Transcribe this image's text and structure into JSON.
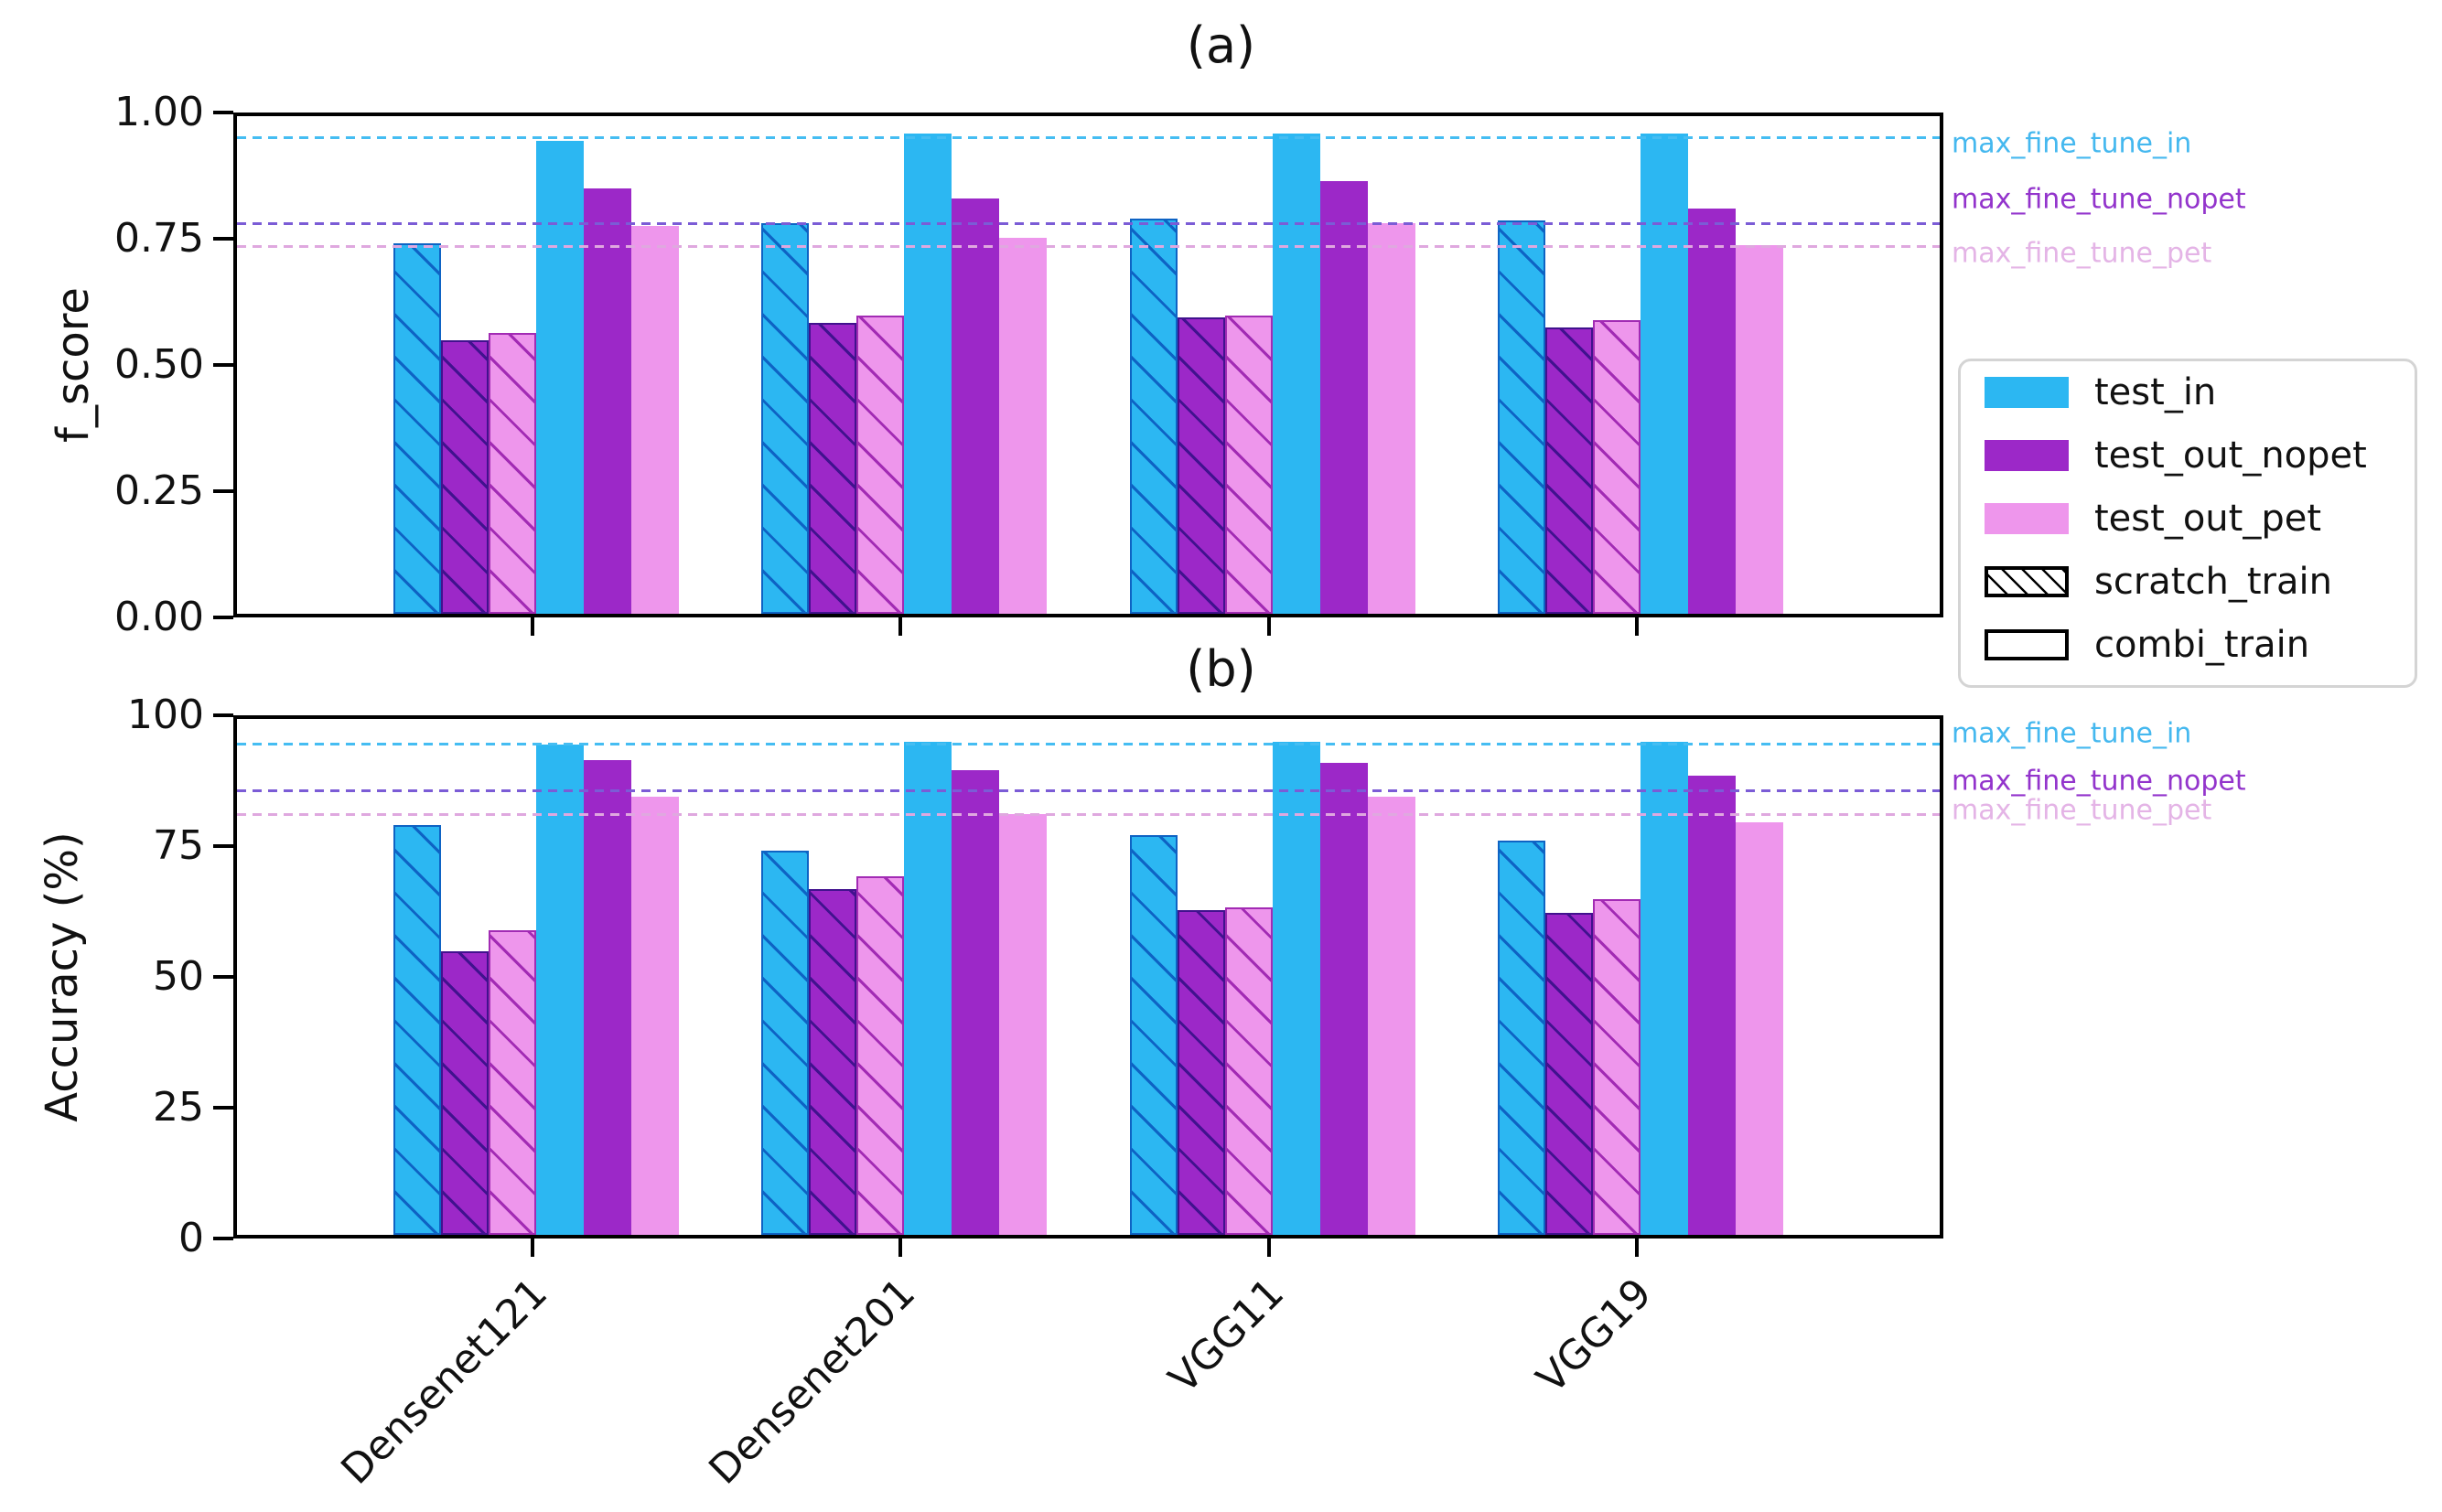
{
  "figure": {
    "background": "#ffffff"
  },
  "legend": {
    "items": [
      {
        "label": "test_in",
        "swatch": "solid",
        "color": "#2cb7f2"
      },
      {
        "label": "test_out_nopet",
        "swatch": "solid",
        "color": "#9c28c8"
      },
      {
        "label": "test_out_pet",
        "swatch": "solid",
        "color": "#ee96ec"
      },
      {
        "label": "scratch_train",
        "swatch": "hatch",
        "color": "#ffffff"
      },
      {
        "label": "combi_train",
        "swatch": "open",
        "color": "#ffffff"
      }
    ]
  },
  "chart_data": [
    {
      "id": "a",
      "type": "bar",
      "title": "(a)",
      "ylabel": "f_score",
      "ylim": [
        0,
        1.0
      ],
      "grid": false,
      "legend_position": "right",
      "yticks": {
        "values": [
          0,
          0.25,
          0.5,
          0.75,
          1.0
        ],
        "labels": [
          "0.00",
          "0.25",
          "0.50",
          "0.75",
          "1.00"
        ]
      },
      "categories": [
        "Densenet121",
        "Densenet201",
        "VGG11",
        "VGG19"
      ],
      "series": [
        {
          "name": "scratch_train test_in",
          "train": "scratch_train",
          "test": "test_in",
          "hatch": true,
          "color": "#2cb7f2",
          "hatch_color": "#0e63c4",
          "values": [
            0.745,
            0.785,
            0.795,
            0.79
          ]
        },
        {
          "name": "scratch_train test_out_nopet",
          "train": "scratch_train",
          "test": "test_out_nopet",
          "hatch": true,
          "color": "#9c28c8",
          "hatch_color": "#41128e",
          "values": [
            0.55,
            0.585,
            0.595,
            0.575
          ]
        },
        {
          "name": "scratch_train test_out_pet",
          "train": "scratch_train",
          "test": "test_out_pet",
          "hatch": true,
          "color": "#ee96ec",
          "hatch_color": "#a22bb4",
          "values": [
            0.565,
            0.6,
            0.6,
            0.59
          ]
        },
        {
          "name": "combi_train test_in",
          "train": "combi_train",
          "test": "test_in",
          "hatch": false,
          "color": "#2cb7f2",
          "hatch_color": "#0e63c4",
          "values": [
            0.95,
            0.965,
            0.965,
            0.965
          ]
        },
        {
          "name": "combi_train test_out_nopet",
          "train": "combi_train",
          "test": "test_out_nopet",
          "hatch": false,
          "color": "#9c28c8",
          "hatch_color": "#41128e",
          "values": [
            0.855,
            0.835,
            0.87,
            0.815
          ]
        },
        {
          "name": "combi_train test_out_pet",
          "train": "combi_train",
          "test": "test_out_pet",
          "hatch": false,
          "color": "#ee96ec",
          "hatch_color": "#a22bb4",
          "values": [
            0.78,
            0.755,
            0.785,
            0.74
          ]
        }
      ],
      "hlines": [
        {
          "label": "max_fine_tune_in",
          "value": 0.96,
          "line_color": "#45bdf2",
          "text_color": "#45b8ef"
        },
        {
          "label": "max_fine_tune_nopet",
          "value": 0.79,
          "line_color": "#7b5cd6",
          "text_color": "#9334cc"
        },
        {
          "label": "max_fine_tune_pet",
          "value": 0.745,
          "line_color": "#dfa8df",
          "text_color": "#e4b4e6"
        }
      ]
    },
    {
      "id": "b",
      "type": "bar",
      "title": "(b)",
      "ylabel": "Accuracy (%)",
      "ylim": [
        0,
        100
      ],
      "grid": false,
      "legend_position": "right",
      "yticks": {
        "values": [
          0,
          25,
          50,
          75,
          100
        ],
        "labels": [
          "0",
          "25",
          "50",
          "75",
          "100"
        ]
      },
      "categories": [
        "Densenet121",
        "Densenet201",
        "VGG11",
        "VGG19"
      ],
      "series": [
        {
          "name": "scratch_train test_in",
          "train": "scratch_train",
          "test": "test_in",
          "hatch": true,
          "color": "#2cb7f2",
          "hatch_color": "#0e63c4",
          "values": [
            79.5,
            74.5,
            77.5,
            76.5
          ]
        },
        {
          "name": "scratch_train test_out_nopet",
          "train": "scratch_train",
          "test": "test_out_nopet",
          "hatch": true,
          "color": "#9c28c8",
          "hatch_color": "#41128e",
          "values": [
            55,
            67,
            63,
            62.5
          ]
        },
        {
          "name": "scratch_train test_out_pet",
          "train": "scratch_train",
          "test": "test_out_pet",
          "hatch": true,
          "color": "#ee96ec",
          "hatch_color": "#a22bb4",
          "values": [
            59,
            69.5,
            63.5,
            65
          ]
        },
        {
          "name": "combi_train test_in",
          "train": "combi_train",
          "test": "test_in",
          "hatch": false,
          "color": "#2cb7f2",
          "hatch_color": "#0e63c4",
          "values": [
            95,
            95.5,
            95.5,
            95.5
          ]
        },
        {
          "name": "combi_train test_out_nopet",
          "train": "combi_train",
          "test": "test_out_nopet",
          "hatch": false,
          "color": "#9c28c8",
          "hatch_color": "#41128e",
          "values": [
            92,
            90,
            91.5,
            89
          ]
        },
        {
          "name": "combi_train test_out_pet",
          "train": "combi_train",
          "test": "test_out_pet",
          "hatch": false,
          "color": "#ee96ec",
          "hatch_color": "#a22bb4",
          "values": [
            85,
            81.5,
            85,
            80
          ]
        }
      ],
      "hlines": [
        {
          "label": "max_fine_tune_in",
          "value": 95.5,
          "line_color": "#45bdf2",
          "text_color": "#45b8ef"
        },
        {
          "label": "max_fine_tune_nopet",
          "value": 86.5,
          "line_color": "#7b5cd6",
          "text_color": "#9334cc"
        },
        {
          "label": "max_fine_tune_pet",
          "value": 82,
          "line_color": "#dfa8df",
          "text_color": "#e4b4e6"
        }
      ]
    }
  ]
}
